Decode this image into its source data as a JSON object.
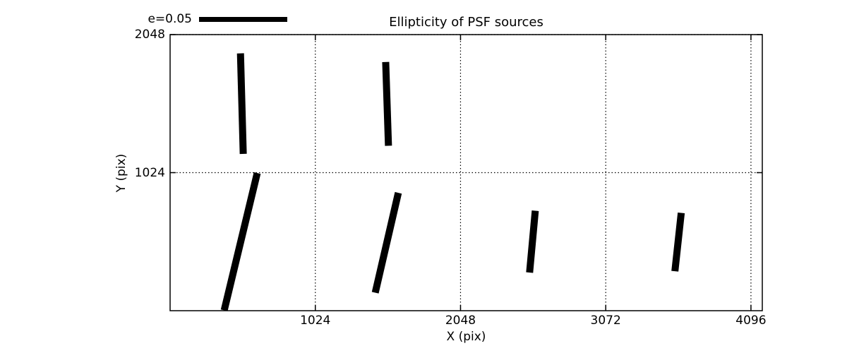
{
  "figure": {
    "background": "#ffffff",
    "foreground": "#000000"
  },
  "chart_data": {
    "type": "quiver",
    "title": "Ellipticity of PSF sources",
    "xlabel": "X (pix)",
    "ylabel": "Y (pix)",
    "xlim": [
      0,
      4176
    ],
    "ylim": [
      0,
      2048
    ],
    "xticks": [
      1024,
      2048,
      3072,
      4096
    ],
    "yticks": [
      1024,
      2048
    ],
    "grid": {
      "visible": true,
      "style": "dotted"
    },
    "legend_position": "top-left-above-axes",
    "key": {
      "label": "e=0.05",
      "e": 0.05
    },
    "data_length_per_e": 12434,
    "sticks": [
      {
        "x": 506,
        "y": 1536,
        "e": 0.06,
        "angle_deg": 91.5
      },
      {
        "x": 1530,
        "y": 1534,
        "e": 0.05,
        "angle_deg": 91.8
      },
      {
        "x": 498,
        "y": 512,
        "e": 0.084,
        "angle_deg": 77.1
      },
      {
        "x": 1528,
        "y": 504,
        "e": 0.061,
        "angle_deg": 77.6
      },
      {
        "x": 2555,
        "y": 512,
        "e": 0.037,
        "angle_deg": 85.0
      },
      {
        "x": 3582,
        "y": 509,
        "e": 0.035,
        "angle_deg": 84.1
      }
    ]
  }
}
